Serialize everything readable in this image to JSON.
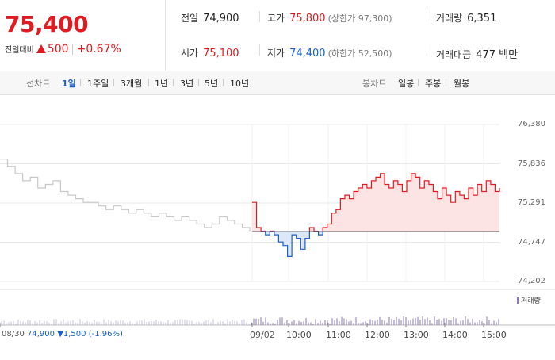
{
  "quote": {
    "price": "75,400",
    "change_label": "전일대비",
    "change_amount": "500",
    "change_pct": "+0.67%"
  },
  "metrics": {
    "prev_close_label": "전일",
    "prev_close": "74,900",
    "high_label": "고가",
    "high": "75,800",
    "upper_limit": "(상한가 97,300)",
    "volume_label": "거래량",
    "volume": "6,351",
    "open_label": "시가",
    "open": "75,100",
    "low_label": "저가",
    "low": "74,400",
    "lower_limit": "(하한가 52,500)",
    "value_label": "거래대금",
    "value": "477 백만"
  },
  "line_tabs": {
    "label": "선차트",
    "items": [
      "1일",
      "1주일",
      "3개월",
      "1년",
      "3년",
      "5년",
      "10년"
    ],
    "active": "1일"
  },
  "candle_tabs": {
    "label": "봉차트",
    "items": [
      "일봉",
      "주봉",
      "월봉"
    ]
  },
  "prev_day": {
    "date": "08/30",
    "close": "74,900",
    "change": "▼1,500",
    "pct": "(-1.96%)"
  },
  "volume_legend": "거래량",
  "colors": {
    "up": "#e11b22",
    "down": "#1a60c9",
    "grid": "#e8e8e8",
    "prev_line": "#c8c8c8"
  },
  "chart_data": {
    "type": "line",
    "y_ticks": [
      "76,380",
      "75,836",
      "75,291",
      "74,747",
      "74,202"
    ],
    "ylim": [
      74202,
      76380
    ],
    "baseline": 74900,
    "x_ticks": [
      "09/02",
      "10:00",
      "11:00",
      "12:00",
      "13:00",
      "14:00",
      "15:00"
    ],
    "prev_day_series": [
      75900,
      75800,
      75700,
      75600,
      75650,
      75500,
      75550,
      75600,
      75450,
      75400,
      75350,
      75300,
      75300,
      75250,
      75200,
      75250,
      75200,
      75150,
      75200,
      75150,
      75100,
      75150,
      75100,
      75050,
      75100,
      75050,
      75000,
      74950,
      75000,
      75100,
      75050,
      75000,
      74950,
      74900
    ],
    "today_series": [
      75300,
      74950,
      74900,
      74850,
      74900,
      74850,
      74750,
      74700,
      74550,
      74850,
      74800,
      74650,
      74800,
      74950,
      74900,
      74850,
      74950,
      75000,
      75150,
      75200,
      75350,
      75400,
      75350,
      75450,
      75500,
      75550,
      75500,
      75600,
      75650,
      75700,
      75550,
      75500,
      75600,
      75550,
      75450,
      75600,
      75700,
      75650,
      75500,
      75600,
      75550,
      75450,
      75350,
      75500,
      75400,
      75300,
      75450,
      75400,
      75350,
      75500,
      75400,
      75550,
      75450,
      75600,
      75550,
      75450,
      75500
    ]
  }
}
